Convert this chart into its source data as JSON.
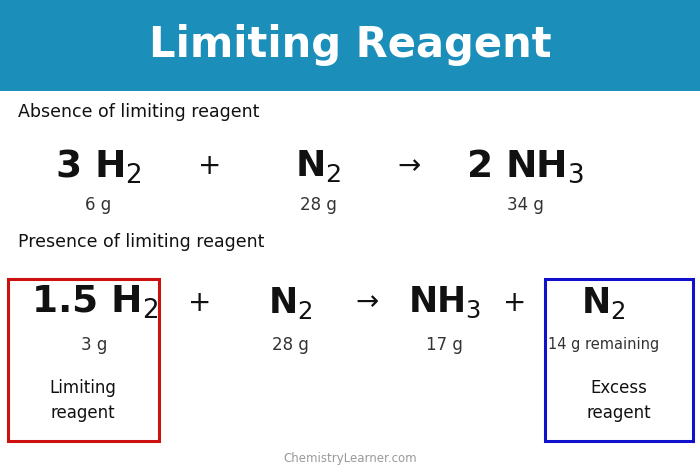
{
  "title": "Limiting Reagent",
  "title_bg": "#1b8eba",
  "title_color": "#ffffff",
  "bg_color": "#ffffff",
  "section1_label": "Absence of limiting reagent",
  "section2_label": "Presence of limiting reagent",
  "watermark": "ChemistryLearner.com",
  "eq1": {
    "terms": [
      "3 H$_2$",
      "+",
      "N$_2$",
      "→",
      "2 NH$_3$"
    ],
    "masses": [
      "6 g",
      "",
      "28 g",
      "",
      "34 g"
    ],
    "x_positions": [
      0.14,
      0.3,
      0.455,
      0.585,
      0.75
    ]
  },
  "eq2": {
    "terms": [
      "1.5 H$_2$",
      "+",
      "N$_2$",
      "→",
      "NH$_3$",
      "+",
      "N$_2$"
    ],
    "masses": [
      "3 g",
      "",
      "28 g",
      "",
      "17 g",
      "",
      "14 g remaining"
    ],
    "x_positions": [
      0.135,
      0.285,
      0.415,
      0.525,
      0.635,
      0.735,
      0.862
    ]
  }
}
